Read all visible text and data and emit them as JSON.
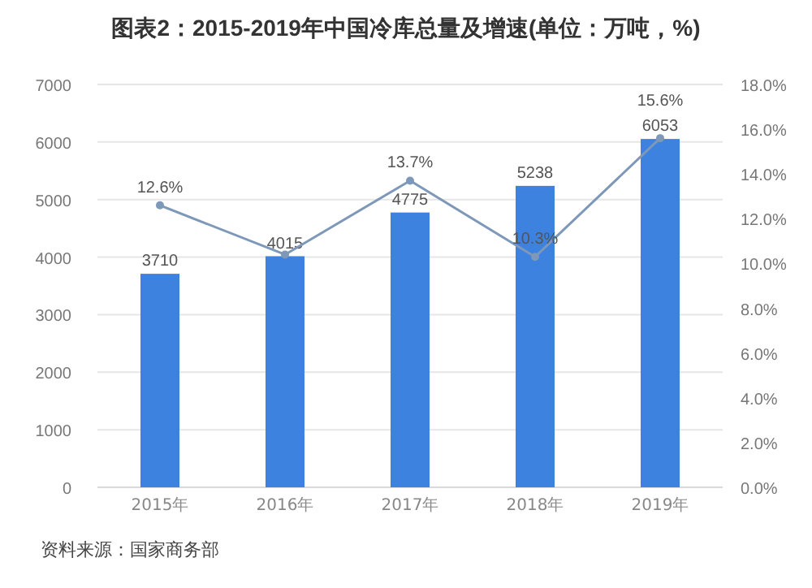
{
  "chart_data": {
    "type": "bar",
    "title": "图表2：2015-2019年中国冷库总量及增速(单位：万吨，%)",
    "categories": [
      "2015年",
      "2016年",
      "2017年",
      "2018年",
      "2019年"
    ],
    "series": [
      {
        "color": "#3d82de",
        "values": [
          3710,
          4015,
          4775,
          5238,
          6053
        ],
        "value_labels": [
          "3710",
          "4015",
          "4775",
          "5238",
          "6053"
        ]
      },
      {
        "type": "line",
        "axis": "y2",
        "color": "#7d98b8",
        "marker": "circle",
        "values": [
          12.6,
          10.4,
          13.7,
          10.3,
          15.6
        ],
        "value_labels": [
          "12.6%",
          null,
          "13.7%",
          "10.3%",
          "15.6%"
        ]
      }
    ],
    "ylim": [
      0,
      7000
    ],
    "yticks": [
      0,
      1000,
      2000,
      3000,
      4000,
      5000,
      6000,
      7000
    ],
    "y2lim": [
      0,
      18
    ],
    "y2ticks": [
      {
        "value": 0,
        "label": "0.0%"
      },
      {
        "value": 2,
        "label": "2.0%"
      },
      {
        "value": 4,
        "label": "4.0%"
      },
      {
        "value": 6,
        "label": "6.0%"
      },
      {
        "value": 8,
        "label": "8.0%"
      },
      {
        "value": 10,
        "label": "10.0%"
      },
      {
        "value": 12,
        "label": "12.0%"
      },
      {
        "value": 14,
        "label": "14.0%"
      },
      {
        "value": 16,
        "label": "16.0%"
      },
      {
        "value": 18,
        "label": "18.0%"
      }
    ],
    "grid": "y",
    "annotations": [
      "资料来源：国家商务部"
    ]
  }
}
